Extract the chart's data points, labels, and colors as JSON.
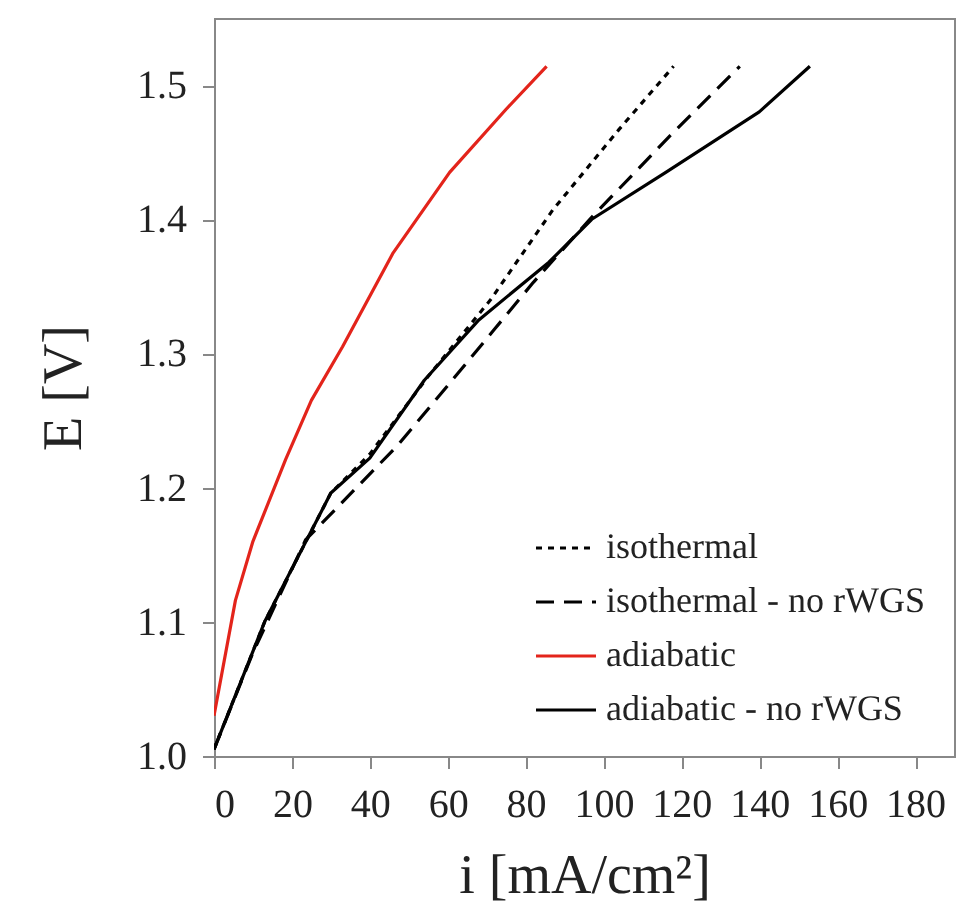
{
  "chart_data": {
    "type": "line",
    "xlabel": "i [mA/cm²]",
    "ylabel": "E [V]",
    "xlim": [
      0,
      190
    ],
    "xticks": [
      0,
      20,
      40,
      60,
      80,
      100,
      120,
      140,
      160,
      180
    ],
    "ylim": [
      1.0,
      1.55
    ],
    "yticks": [
      {
        "value": 1.0,
        "label": "1.0"
      },
      1.1,
      1.2,
      1.3,
      1.4,
      1.5
    ],
    "grid": false,
    "legend": "bottom right",
    "series": [
      {
        "name": "isothermal",
        "color": "#000000",
        "line_style": "dotted",
        "x": [
          0,
          13,
          30,
          40,
          55,
          71,
          87,
          104,
          118
        ],
        "values": [
          1.005,
          1.1,
          1.196,
          1.225,
          1.283,
          1.34,
          1.407,
          1.467,
          1.514
        ]
      },
      {
        "name": "isothermal - no rWGS",
        "color": "#000000",
        "line_style": "dashed",
        "x": [
          0,
          10,
          23.5,
          47,
          60,
          72,
          82,
          96.5,
          117,
          135
        ],
        "values": [
          1.005,
          1.077,
          1.161,
          1.231,
          1.276,
          1.318,
          1.353,
          1.4,
          1.462,
          1.514
        ]
      },
      {
        "name": "adiabatic",
        "color": "#e3241b",
        "line_style": "solid",
        "x": [
          0,
          5.5,
          10,
          18.4,
          25,
          33,
          46,
          60.5,
          75,
          85.4
        ],
        "values": [
          1.03,
          1.116,
          1.16,
          1.221,
          1.265,
          1.305,
          1.375,
          1.435,
          1.482,
          1.514
        ]
      },
      {
        "name": "adiabatic - no rWGS",
        "color": "#000000",
        "line_style": "solid",
        "x": [
          0,
          13,
          30,
          40,
          54,
          68,
          86,
          97,
          116,
          140,
          153
        ],
        "values": [
          1.005,
          1.1,
          1.196,
          1.222,
          1.28,
          1.325,
          1.368,
          1.4,
          1.435,
          1.48,
          1.514
        ]
      }
    ]
  }
}
